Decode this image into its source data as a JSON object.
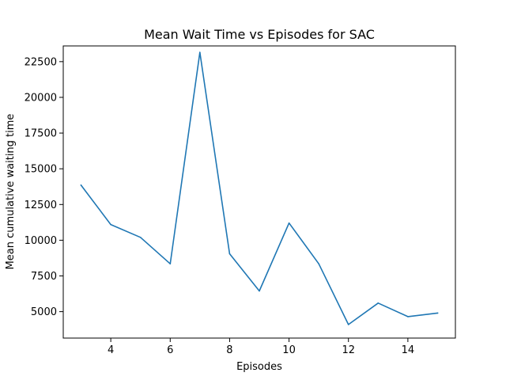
{
  "chart_data": {
    "type": "line",
    "title": "Mean Wait Time vs Episodes for SAC",
    "xlabel": "Episodes",
    "ylabel": "Mean cumulative waiting time",
    "xlim": [
      2.4,
      15.6
    ],
    "ylim": [
      3150,
      23600
    ],
    "x_ticks": [
      4,
      6,
      8,
      10,
      12,
      14
    ],
    "y_ticks": [
      5000,
      7500,
      10000,
      12500,
      15000,
      17500,
      20000,
      22500
    ],
    "grid": false,
    "series": [
      {
        "color": "#1f77b4",
        "x": [
          3,
          4,
          5,
          6,
          7,
          8,
          9,
          10,
          11,
          12,
          13,
          14,
          15
        ],
        "y": [
          13850,
          11100,
          10200,
          8350,
          23150,
          9050,
          6450,
          11200,
          8350,
          4100,
          5600,
          4650,
          4900
        ]
      }
    ]
  }
}
